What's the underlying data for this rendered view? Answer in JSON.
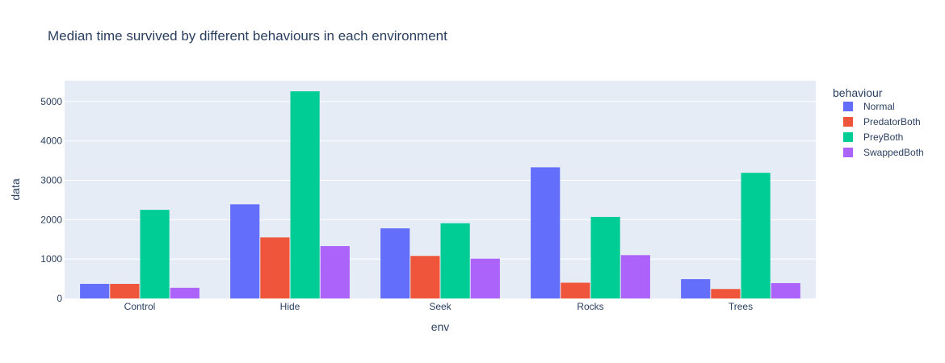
{
  "chart_data": {
    "type": "bar",
    "title": "Median time survived by different behaviours in each environment",
    "xlabel": "env",
    "ylabel": "data",
    "categories": [
      "Control",
      "Hide",
      "Seek",
      "Rocks",
      "Trees"
    ],
    "ylim": [
      0,
      5530
    ],
    "yticks": [
      0,
      1000,
      2000,
      3000,
      4000,
      5000
    ],
    "grid": true,
    "legend_title": "behaviour",
    "legend_position": "right",
    "plot_background": "#e5ecf6",
    "series": [
      {
        "name": "Normal",
        "color": "#636efa",
        "values": [
          370,
          2390,
          1780,
          3330,
          490
        ]
      },
      {
        "name": "PredatorBoth",
        "color": "#ef553b",
        "values": [
          370,
          1550,
          1080,
          400,
          240
        ]
      },
      {
        "name": "PreyBoth",
        "color": "#00cc96",
        "values": [
          2250,
          5260,
          1910,
          2070,
          3190
        ]
      },
      {
        "name": "SwappedBoth",
        "color": "#ab63fa",
        "values": [
          270,
          1330,
          1010,
          1100,
          390
        ]
      }
    ]
  }
}
